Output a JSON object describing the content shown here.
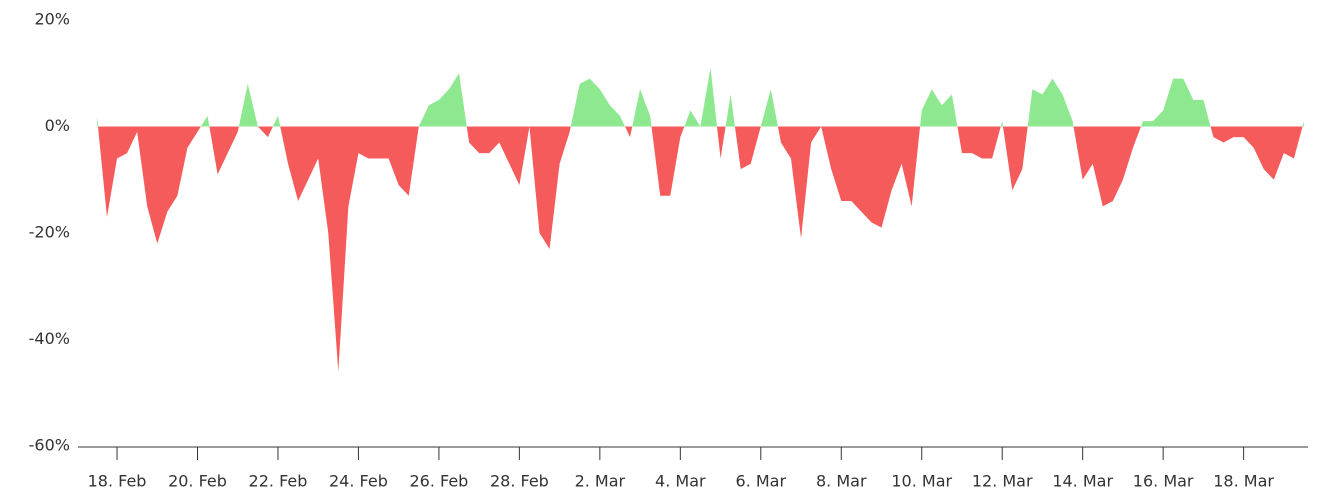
{
  "chart_data": {
    "type": "area",
    "x": [
      48.5,
      48.75,
      49,
      49.25,
      49.5,
      49.75,
      50,
      50.25,
      50.5,
      50.75,
      51,
      51.25,
      51.5,
      51.75,
      52,
      52.25,
      52.5,
      52.75,
      53,
      53.25,
      53.5,
      53.75,
      54,
      54.25,
      54.5,
      54.75,
      55,
      55.25,
      55.5,
      55.75,
      56,
      56.25,
      56.5,
      56.75,
      57,
      57.25,
      57.5,
      57.75,
      58,
      58.25,
      58.5,
      58.75,
      59,
      59.25,
      59.5,
      59.75,
      60,
      60.25,
      60.5,
      60.75,
      61,
      61.25,
      61.5,
      61.75,
      62,
      62.25,
      62.5,
      62.75,
      63,
      63.25,
      63.5,
      63.75,
      64,
      64.25,
      64.5,
      64.75,
      65,
      65.25,
      65.5,
      65.75,
      66,
      66.25,
      66.5,
      66.75,
      67,
      67.25,
      67.5,
      67.75,
      68,
      68.25,
      68.5,
      68.75,
      69,
      69.25,
      69.5,
      69.75,
      70,
      70.25,
      70.5,
      70.75,
      71,
      71.25,
      71.5,
      71.75,
      72,
      72.25,
      72.5,
      72.75,
      73,
      73.25,
      73.5,
      73.75,
      74,
      74.25,
      74.5,
      74.75,
      75,
      75.25,
      75.5,
      75.75,
      76,
      76.25,
      76.5,
      76.75,
      77,
      77.25,
      77.5,
      77.75,
      78,
      78.25,
      78.5
    ],
    "values": [
      2,
      -17,
      -6,
      -5,
      -1,
      -15,
      -22,
      -16,
      -13,
      -4,
      -1,
      2,
      -9,
      -5,
      -1,
      8,
      0,
      -2,
      2,
      -7,
      -14,
      -10,
      -6,
      -20,
      -46,
      -15,
      -5,
      -6,
      -6,
      -6,
      -11,
      -13,
      0,
      4,
      5,
      7,
      10,
      -3,
      -5,
      -5,
      -3,
      -7,
      -11,
      0,
      -20,
      -23,
      -7,
      -1,
      8,
      9,
      7,
      4,
      2,
      -2,
      7,
      2,
      -13,
      -13,
      -2,
      3,
      0,
      11,
      -6,
      6,
      -8,
      -7,
      0,
      7,
      -3,
      -6,
      -21,
      -3,
      0,
      -8,
      -14,
      -14,
      -16,
      -18,
      -19,
      -12,
      -7,
      -15,
      3,
      7,
      4,
      6,
      -5,
      -5,
      -6,
      -6,
      1,
      -12,
      -8,
      7,
      6,
      9,
      6,
      1,
      -10,
      -7,
      -15,
      -14,
      -10,
      -4,
      1,
      1,
      3,
      9,
      9,
      5,
      5,
      -2,
      -3,
      -2,
      -2,
      -4,
      -8,
      -10,
      -5,
      -6,
      1
    ],
    "positive_color": "#8ee88f",
    "negative_color": "#f55b5b",
    "xlim": [
      48.03,
      78.6
    ],
    "xticks": [
      {
        "value": 49,
        "label": "18. Feb"
      },
      {
        "value": 51,
        "label": "20. Feb"
      },
      {
        "value": 53,
        "label": "22. Feb"
      },
      {
        "value": 55,
        "label": "24. Feb"
      },
      {
        "value": 57,
        "label": "26. Feb"
      },
      {
        "value": 59,
        "label": "28. Feb"
      },
      {
        "value": 61,
        "label": "2. Mar"
      },
      {
        "value": 63,
        "label": "4. Mar"
      },
      {
        "value": 65,
        "label": "6. Mar"
      },
      {
        "value": 67,
        "label": "8. Mar"
      },
      {
        "value": 69,
        "label": "10. Mar"
      },
      {
        "value": 71,
        "label": "12. Mar"
      },
      {
        "value": 73,
        "label": "14. Mar"
      },
      {
        "value": 75,
        "label": "16. Mar"
      },
      {
        "value": 77,
        "label": "18. Mar"
      }
    ],
    "ylim": [
      -60,
      20
    ],
    "yticks": [
      {
        "value": 20,
        "label": "20%"
      },
      {
        "value": 0,
        "label": "0%"
      },
      {
        "value": -20,
        "label": "-20%"
      },
      {
        "value": -40,
        "label": "-40%"
      },
      {
        "value": -60,
        "label": "-60%"
      }
    ]
  }
}
